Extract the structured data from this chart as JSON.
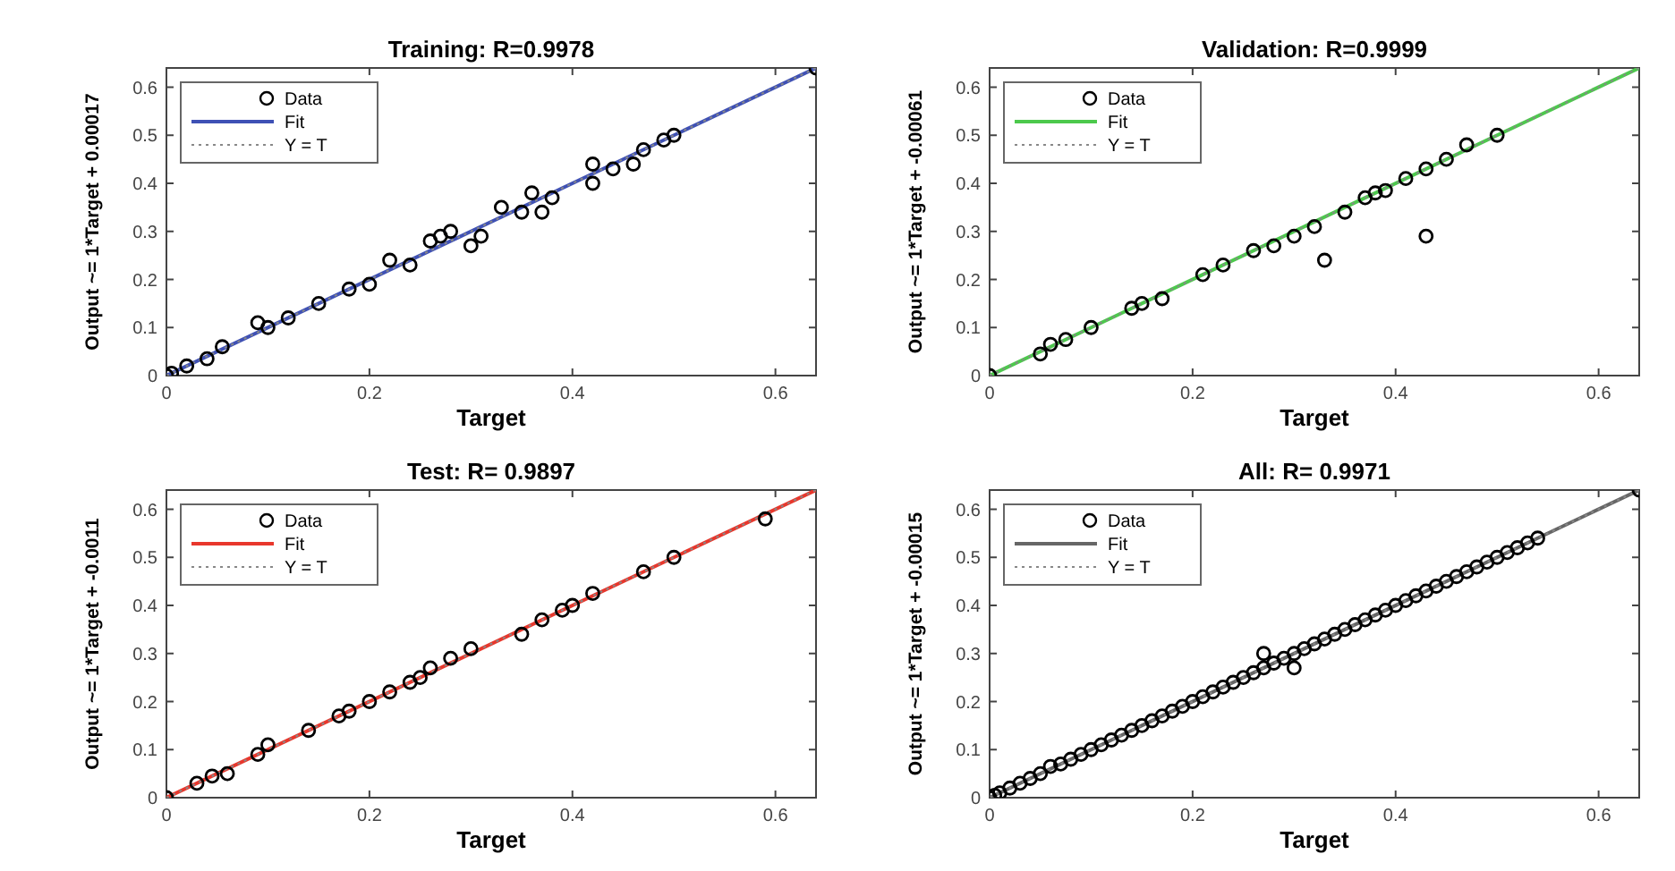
{
  "chart_data": [
    {
      "type": "scatter",
      "title": "Training: R=0.9978",
      "xlabel": "Target",
      "ylabel": "Output ~= 1*Target + 0.00017",
      "xlim": [
        0,
        0.64
      ],
      "ylim": [
        0,
        0.64
      ],
      "xticks": [
        0,
        0.2,
        0.4,
        0.6
      ],
      "yticks": [
        0,
        0.1,
        0.2,
        0.3,
        0.4,
        0.5,
        0.6
      ],
      "legend": "top left",
      "series": [
        {
          "name": "Data",
          "marker": "circle",
          "color": "#000000",
          "x": [
            0,
            0.005,
            0.02,
            0.04,
            0.055,
            0.09,
            0.1,
            0.12,
            0.15,
            0.18,
            0.2,
            0.22,
            0.24,
            0.26,
            0.27,
            0.28,
            0.3,
            0.31,
            0.33,
            0.35,
            0.36,
            0.37,
            0.38,
            0.42,
            0.42,
            0.44,
            0.46,
            0.47,
            0.49,
            0.5,
            0.64
          ],
          "values": [
            0,
            0.005,
            0.02,
            0.035,
            0.06,
            0.11,
            0.1,
            0.12,
            0.15,
            0.18,
            0.19,
            0.24,
            0.23,
            0.28,
            0.29,
            0.3,
            0.27,
            0.29,
            0.35,
            0.34,
            0.38,
            0.34,
            0.37,
            0.44,
            0.4,
            0.43,
            0.44,
            0.47,
            0.49,
            0.5,
            0.64
          ]
        },
        {
          "name": "Fit",
          "type": "line",
          "line_style": "solid",
          "color": "#3f51b5",
          "x": [
            0,
            0.64
          ],
          "values": [
            0,
            0.64
          ]
        },
        {
          "name": "Y = T",
          "type": "line",
          "line_style": "dotted",
          "color": "#888888",
          "x": [
            0,
            0.64
          ],
          "values": [
            0,
            0.64
          ]
        }
      ]
    },
    {
      "type": "scatter",
      "title": "Validation: R=0.9999",
      "xlabel": "Target",
      "ylabel": "Output ~= 1*Target + -0.00061",
      "xlim": [
        0,
        0.64
      ],
      "ylim": [
        0,
        0.64
      ],
      "xticks": [
        0,
        0.2,
        0.4,
        0.6
      ],
      "yticks": [
        0,
        0.1,
        0.2,
        0.3,
        0.4,
        0.5,
        0.6
      ],
      "legend": "top left",
      "series": [
        {
          "name": "Data",
          "marker": "circle",
          "color": "#000000",
          "x": [
            0,
            0.05,
            0.06,
            0.075,
            0.1,
            0.14,
            0.15,
            0.17,
            0.21,
            0.23,
            0.26,
            0.28,
            0.3,
            0.32,
            0.35,
            0.37,
            0.38,
            0.39,
            0.41,
            0.43,
            0.45,
            0.47,
            0.5,
            0.33,
            0.43
          ],
          "values": [
            0,
            0.045,
            0.065,
            0.075,
            0.1,
            0.14,
            0.15,
            0.16,
            0.21,
            0.23,
            0.26,
            0.27,
            0.29,
            0.31,
            0.34,
            0.37,
            0.38,
            0.385,
            0.41,
            0.43,
            0.45,
            0.48,
            0.5,
            0.24,
            0.29
          ]
        },
        {
          "name": "Fit",
          "type": "line",
          "line_style": "solid",
          "color": "#4cc94c",
          "x": [
            0,
            0.64
          ],
          "values": [
            0,
            0.64
          ]
        },
        {
          "name": "Y = T",
          "type": "line",
          "line_style": "dotted",
          "color": "#888888",
          "x": [
            0,
            0.64
          ],
          "values": [
            0,
            0.64
          ]
        }
      ]
    },
    {
      "type": "scatter",
      "title": "Test: R= 0.9897",
      "xlabel": "Target",
      "ylabel": "Output ~= 1*Target + -0.0011",
      "xlim": [
        0,
        0.64
      ],
      "ylim": [
        0,
        0.64
      ],
      "xticks": [
        0,
        0.2,
        0.4,
        0.6
      ],
      "yticks": [
        0,
        0.1,
        0.2,
        0.3,
        0.4,
        0.5,
        0.6
      ],
      "legend": "top left",
      "series": [
        {
          "name": "Data",
          "marker": "circle",
          "color": "#000000",
          "x": [
            0,
            0.03,
            0.045,
            0.06,
            0.09,
            0.1,
            0.14,
            0.17,
            0.18,
            0.2,
            0.22,
            0.24,
            0.25,
            0.26,
            0.28,
            0.3,
            0.35,
            0.37,
            0.39,
            0.4,
            0.42,
            0.47,
            0.5,
            0.59
          ],
          "values": [
            0,
            0.03,
            0.045,
            0.05,
            0.09,
            0.11,
            0.14,
            0.17,
            0.18,
            0.2,
            0.22,
            0.24,
            0.25,
            0.27,
            0.29,
            0.31,
            0.34,
            0.37,
            0.39,
            0.4,
            0.425,
            0.47,
            0.5,
            0.58
          ]
        },
        {
          "name": "Fit",
          "type": "line",
          "line_style": "solid",
          "color": "#e8372c",
          "x": [
            0,
            0.64
          ],
          "values": [
            0,
            0.64
          ]
        },
        {
          "name": "Y = T",
          "type": "line",
          "line_style": "dotted",
          "color": "#888888",
          "x": [
            0,
            0.64
          ],
          "values": [
            0,
            0.64
          ]
        }
      ]
    },
    {
      "type": "scatter",
      "title": "All: R= 0.9971",
      "xlabel": "Target",
      "ylabel": "Output ~= 1*Target + -0.00015",
      "xlim": [
        0,
        0.64
      ],
      "ylim": [
        0,
        0.64
      ],
      "xticks": [
        0,
        0.2,
        0.4,
        0.6
      ],
      "yticks": [
        0,
        0.1,
        0.2,
        0.3,
        0.4,
        0.5,
        0.6
      ],
      "legend": "top left",
      "series": [
        {
          "name": "Data",
          "marker": "circle",
          "color": "#000000",
          "x": [
            0,
            0.005,
            0.01,
            0.02,
            0.03,
            0.04,
            0.05,
            0.06,
            0.07,
            0.08,
            0.09,
            0.1,
            0.11,
            0.12,
            0.13,
            0.14,
            0.15,
            0.16,
            0.17,
            0.18,
            0.19,
            0.2,
            0.21,
            0.22,
            0.23,
            0.24,
            0.25,
            0.26,
            0.27,
            0.28,
            0.29,
            0.3,
            0.31,
            0.32,
            0.33,
            0.34,
            0.35,
            0.36,
            0.37,
            0.38,
            0.39,
            0.4,
            0.41,
            0.42,
            0.43,
            0.44,
            0.45,
            0.46,
            0.47,
            0.48,
            0.49,
            0.5,
            0.51,
            0.52,
            0.53,
            0.54,
            0.27,
            0.3,
            0.64
          ],
          "values": [
            0,
            0.005,
            0.01,
            0.02,
            0.03,
            0.04,
            0.05,
            0.065,
            0.07,
            0.08,
            0.09,
            0.1,
            0.11,
            0.12,
            0.13,
            0.14,
            0.15,
            0.16,
            0.17,
            0.18,
            0.19,
            0.2,
            0.21,
            0.22,
            0.23,
            0.24,
            0.25,
            0.26,
            0.27,
            0.28,
            0.29,
            0.3,
            0.31,
            0.32,
            0.33,
            0.34,
            0.35,
            0.36,
            0.37,
            0.38,
            0.39,
            0.4,
            0.41,
            0.42,
            0.43,
            0.44,
            0.45,
            0.46,
            0.47,
            0.48,
            0.49,
            0.5,
            0.51,
            0.52,
            0.53,
            0.54,
            0.3,
            0.27,
            0.64
          ]
        },
        {
          "name": "Fit",
          "type": "line",
          "line_style": "solid",
          "color": "#666666",
          "x": [
            0,
            0.64
          ],
          "values": [
            0,
            0.64
          ]
        },
        {
          "name": "Y = T",
          "type": "line",
          "line_style": "dotted",
          "color": "#888888",
          "x": [
            0,
            0.64
          ],
          "values": [
            0,
            0.64
          ]
        }
      ]
    }
  ]
}
